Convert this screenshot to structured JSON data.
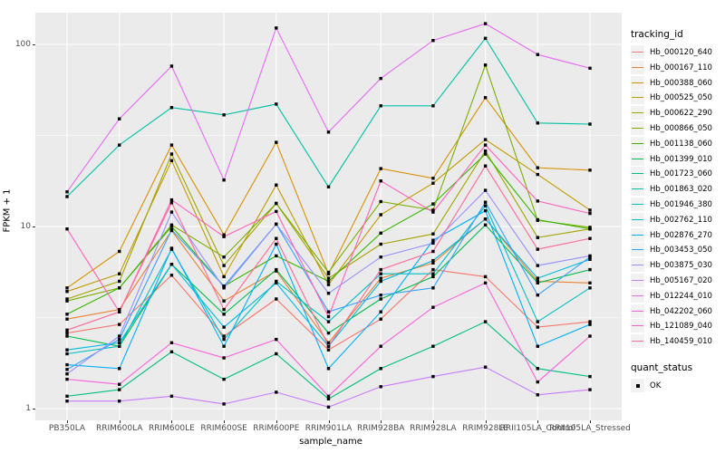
{
  "chart_data": {
    "type": "line",
    "title": "",
    "xlabel": "sample_name",
    "ylabel": "FPKM + 1",
    "y_scale": "log10",
    "y_ticks": [
      1,
      10,
      100
    ],
    "ylim_log": [
      -0.11,
      2.175
    ],
    "grid": "on",
    "panel_bg": "#EBEBEB",
    "grid_color": "#FFFFFF",
    "axis_text_color": "#4D4D4D",
    "legend_key_bg": "#F2F2F2",
    "marker": {
      "shape": "filled-square",
      "color": "#000000"
    },
    "x_categories": [
      "PB350LA",
      "RRIM600LA",
      "RRIM600LE",
      "RRIM600SE",
      "RRIM600PE",
      "RRIM901LA",
      "RRIM928BA",
      "RRIM928LA",
      "RRIM928LE",
      "RRII105LA_Control",
      "RRII105LA_Stressed"
    ],
    "legend": {
      "color_title": "tracking_id",
      "shape_title": "quant_status",
      "shape_items": [
        {
          "label": "OK",
          "marker": "filled-square"
        }
      ]
    },
    "series": [
      {
        "name": "Hb_000120_640",
        "color": "#F8766D",
        "values": [
          2.6,
          2.9,
          5.4,
          2.5,
          4.0,
          2.1,
          3.1,
          5.8,
          5.3,
          2.8,
          3.0
        ]
      },
      {
        "name": "Hb_000167_110",
        "color": "#EA8331",
        "values": [
          3.1,
          3.5,
          9.5,
          3.9,
          5.7,
          2.3,
          5.2,
          6.3,
          11.0,
          5.0,
          4.9
        ]
      },
      {
        "name": "Hb_000388_060",
        "color": "#D89000",
        "values": [
          4.6,
          7.3,
          28,
          9.0,
          29,
          5.5,
          20.8,
          18.4,
          51,
          21,
          20.4
        ]
      },
      {
        "name": "Hb_000525_050",
        "color": "#C09B00",
        "values": [
          4.4,
          5.5,
          23,
          5.3,
          16.9,
          4.8,
          11.6,
          17.3,
          30,
          19.3,
          12.3
        ]
      },
      {
        "name": "Hb_000622_290",
        "color": "#A3A500",
        "values": [
          4.0,
          5.0,
          25,
          6.1,
          13.4,
          5.2,
          8.0,
          9.1,
          26,
          8.7,
          9.7
        ]
      },
      {
        "name": "Hb_000866_050",
        "color": "#7CAE00",
        "values": [
          3.9,
          4.6,
          10.2,
          6.8,
          13.4,
          5.6,
          13.7,
          12.3,
          77,
          10.8,
          9.9
        ]
      },
      {
        "name": "Hb_001138_060",
        "color": "#39B600",
        "values": [
          3.3,
          4.6,
          10.0,
          4.7,
          6.9,
          5.0,
          9.2,
          13.3,
          25,
          10.9,
          9.7
        ]
      },
      {
        "name": "Hb_001399_010",
        "color": "#00BB4E",
        "values": [
          2.5,
          2.2,
          6.2,
          3.3,
          5.8,
          2.6,
          4.0,
          5.3,
          10.2,
          4.9,
          5.8
        ]
      },
      {
        "name": "Hb_001723_060",
        "color": "#00BF7D",
        "values": [
          1.17,
          1.27,
          2.05,
          1.45,
          2.0,
          1.13,
          1.66,
          2.2,
          3.0,
          1.66,
          1.5
        ]
      },
      {
        "name": "Hb_001863_020",
        "color": "#00C1A3",
        "values": [
          14.6,
          28,
          45,
          41,
          47,
          16.5,
          46,
          46,
          108,
          37,
          36.5
        ]
      },
      {
        "name": "Hb_001946_380",
        "color": "#00BFC4",
        "values": [
          2.0,
          2.2,
          7.5,
          2.4,
          5.0,
          3.0,
          5.5,
          5.5,
          13.0,
          3.0,
          4.6
        ]
      },
      {
        "name": "Hb_002762_110",
        "color": "#00BAE0",
        "values": [
          2.1,
          2.3,
          6.2,
          2.8,
          4.9,
          2.2,
          5.0,
          6.5,
          11.0,
          5.2,
          6.6
        ]
      },
      {
        "name": "Hb_002876_270",
        "color": "#00B0F6",
        "values": [
          1.74,
          1.66,
          7.6,
          2.2,
          8.0,
          1.66,
          3.4,
          8.4,
          12.2,
          2.2,
          2.9
        ]
      },
      {
        "name": "Hb_003453_050",
        "color": "#35A2FF",
        "values": [
          1.64,
          2.4,
          9.6,
          4.7,
          10.3,
          3.4,
          4.2,
          4.6,
          13.6,
          4.2,
          6.8
        ]
      },
      {
        "name": "Hb_003875_030",
        "color": "#9590FF",
        "values": [
          1.55,
          2.5,
          12.0,
          4.6,
          10.3,
          4.3,
          6.8,
          8.1,
          15.8,
          6.1,
          6.9
        ]
      },
      {
        "name": "Hb_005167_020",
        "color": "#C77CFF",
        "values": [
          1.1,
          1.1,
          1.17,
          1.06,
          1.23,
          1.02,
          1.32,
          1.5,
          1.69,
          1.19,
          1.27
        ]
      },
      {
        "name": "Hb_012244_010",
        "color": "#E76BF3",
        "values": [
          15.5,
          39,
          76,
          18,
          123,
          33,
          65,
          105,
          130,
          88,
          74
        ]
      },
      {
        "name": "Hb_042202_060",
        "color": "#FA62DB",
        "values": [
          1.45,
          1.36,
          2.3,
          1.9,
          2.4,
          1.17,
          2.2,
          3.6,
          4.9,
          1.4,
          2.5
        ]
      },
      {
        "name": "Hb_121089_040",
        "color": "#FF62BC",
        "values": [
          9.7,
          3.4,
          14.0,
          8.8,
          12.1,
          3.2,
          17.8,
          12.0,
          28,
          13.8,
          11.8
        ]
      },
      {
        "name": "Hb_140459_010",
        "color": "#FF6A98",
        "values": [
          2.7,
          3.4,
          13.5,
          3.5,
          8.6,
          2.2,
          5.8,
          7.3,
          21.5,
          7.5,
          8.6
        ]
      }
    ]
  }
}
